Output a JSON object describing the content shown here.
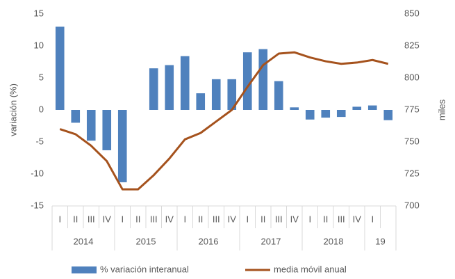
{
  "chart_data": {
    "type": "bar_line",
    "ylabel": "variación (%)",
    "y2label": "miles",
    "categories": [
      "I",
      "II",
      "III",
      "IV",
      "I",
      "II",
      "III",
      "IV",
      "I",
      "II",
      "III",
      "IV",
      "I",
      "II",
      "III",
      "IV",
      "I",
      "II",
      "III",
      "IV",
      "I",
      null
    ],
    "groups": [
      {
        "label": "2014",
        "span": 4
      },
      {
        "label": "2015",
        "span": 4
      },
      {
        "label": "2016",
        "span": 4
      },
      {
        "label": "2017",
        "span": 4
      },
      {
        "label": "2018",
        "span": 4
      },
      {
        "label": "19",
        "span": 2
      }
    ],
    "series": [
      {
        "name": "% variación interanual",
        "type": "bar",
        "color": "#4f81bd",
        "values": [
          13,
          -2,
          -4.8,
          -6.3,
          -11.3,
          0,
          6.5,
          7,
          8.4,
          2.6,
          4.8,
          4.8,
          9,
          9.5,
          4.5,
          0.4,
          -1.5,
          -1.2,
          -1.1,
          0.5,
          0.7,
          -1.6
        ]
      },
      {
        "name": "media móvil anual",
        "type": "line",
        "axis": "y2",
        "color": "#a5521d",
        "values": [
          760,
          756,
          747,
          735,
          713,
          713,
          724,
          737,
          752,
          757,
          766,
          775,
          793,
          810,
          819,
          820,
          816,
          813,
          811,
          812,
          814,
          811
        ]
      }
    ],
    "ylim": [
      -15,
      15
    ],
    "yticks": [
      -15,
      -10,
      -5,
      0,
      5,
      10,
      15
    ],
    "y2lim": [
      700,
      850
    ],
    "y2ticks": [
      700,
      725,
      750,
      775,
      800,
      825,
      850
    ],
    "grid": false
  }
}
